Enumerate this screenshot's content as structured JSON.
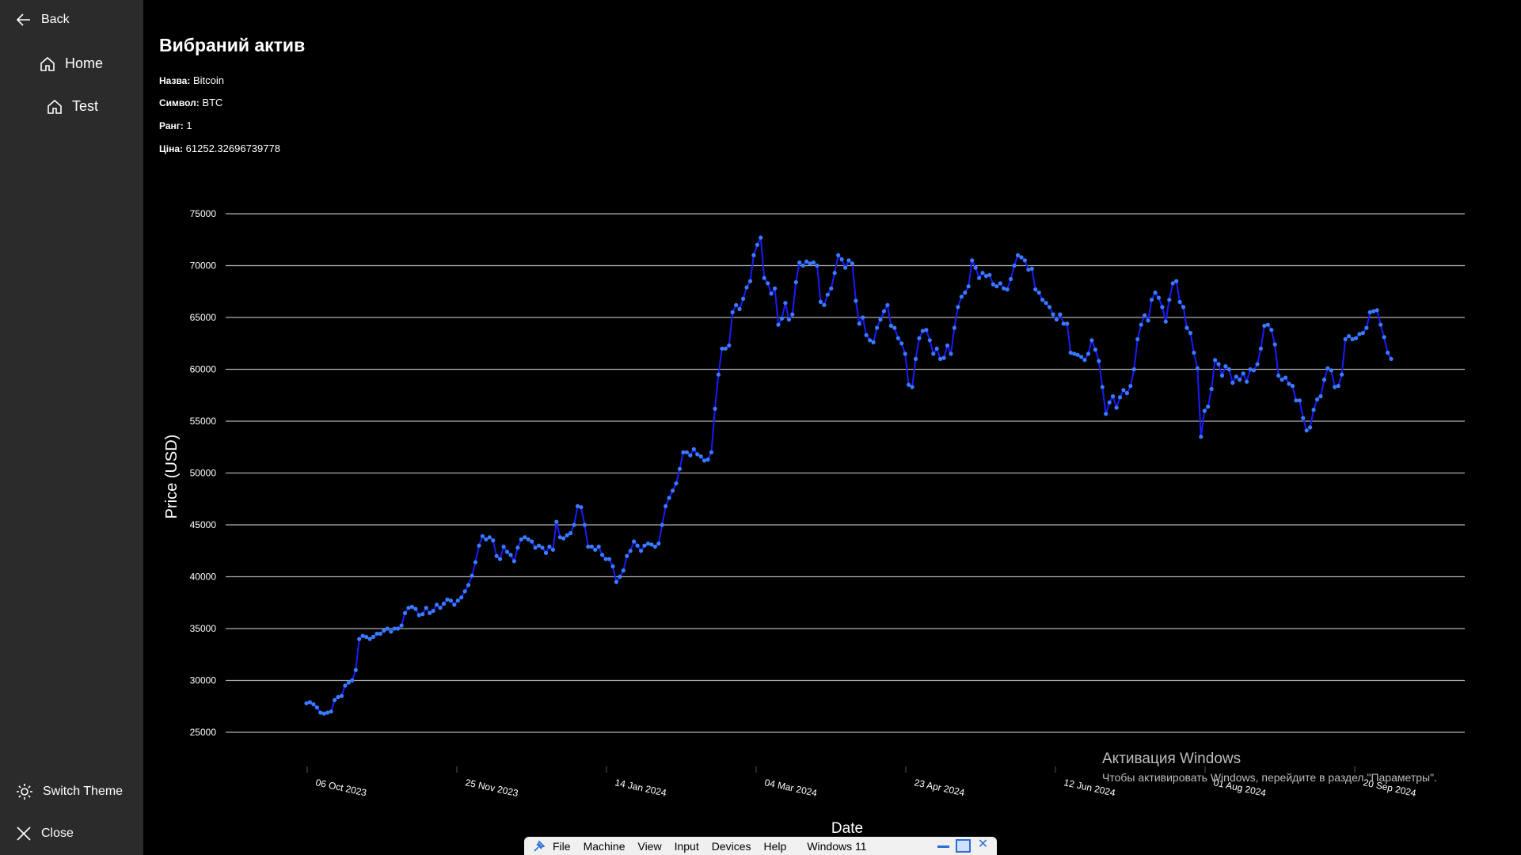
{
  "sidebar": {
    "back_label": "Back",
    "items": [
      {
        "label": "Home",
        "icon": "home-icon"
      },
      {
        "label": "Test",
        "icon": "home-icon"
      }
    ],
    "switch_theme_label": "Switch Theme",
    "close_label": "Close"
  },
  "asset": {
    "title": "Вибраний актив",
    "name_label": "Назва:",
    "name": "Bitcoin",
    "symbol_label": "Символ:",
    "symbol": "BTC",
    "rank_label": "Ранг:",
    "rank": "1",
    "price_label": "Ціна:",
    "price": "61252.32696739778"
  },
  "chart_data": {
    "type": "line",
    "xlabel": "Date",
    "ylabel": "Price (USD)",
    "ylim": [
      25000,
      75000
    ],
    "y_ticks": [
      "25000",
      "30000",
      "35000",
      "40000",
      "45000",
      "50000",
      "55000",
      "60000",
      "65000",
      "70000",
      "75000"
    ],
    "x_ticks": [
      "06 Oct 2023",
      "25 Nov 2023",
      "14 Jan 2024",
      "04 Mar 2024",
      "23 Apr 2024",
      "12 Jun 2024",
      "01 Aug 2024",
      "20 Sep 2024"
    ],
    "x_start": "2023-09-27",
    "x_end": "2024-09-26",
    "grid": true,
    "line_color": "#1a1aff",
    "marker_color": "#3a7bff",
    "values": [
      27800,
      27900,
      27700,
      27400,
      26900,
      26800,
      26900,
      27000,
      28100,
      28400,
      28500,
      29500,
      29800,
      30000,
      31000,
      34000,
      34300,
      34200,
      34000,
      34200,
      34500,
      34500,
      34800,
      35000,
      34700,
      35000,
      35000,
      35300,
      36500,
      37000,
      37100,
      36900,
      36300,
      36400,
      37000,
      36500,
      36700,
      37300,
      37000,
      37400,
      37800,
      37700,
      37300,
      37700,
      38000,
      38600,
      39200,
      40100,
      41400,
      43000,
      43900,
      43600,
      43800,
      43500,
      42000,
      41700,
      42900,
      42400,
      42100,
      41500,
      42800,
      43600,
      43800,
      43600,
      43400,
      42800,
      43000,
      42800,
      42300,
      42900,
      42600,
      45300,
      43800,
      43700,
      44000,
      44200,
      45000,
      46800,
      46700,
      45000,
      42900,
      42900,
      42600,
      42900,
      42100,
      41700,
      41700,
      41000,
      39500,
      40000,
      40600,
      42000,
      42500,
      43400,
      43000,
      42500,
      43000,
      43200,
      43100,
      42900,
      43200,
      45000,
      46800,
      47600,
      48300,
      49000,
      50400,
      52000,
      52000,
      51700,
      52300,
      51800,
      51600,
      51200,
      51300,
      52000,
      56200,
      59500,
      62000,
      62000,
      62300,
      65500,
      66200,
      65800,
      66800,
      67900,
      68500,
      71000,
      72000,
      72700,
      68800,
      68300,
      67300,
      67800,
      64300,
      64900,
      66400,
      64800,
      65300,
      68400,
      70300,
      70000,
      70400,
      70200,
      70300,
      70000,
      66500,
      66200,
      67200,
      67800,
      69300,
      71000,
      70600,
      69800,
      70500,
      70200,
      66600,
      64400,
      65000,
      63300,
      62800,
      62600,
      64000,
      64800,
      65600,
      66200,
      64200,
      64000,
      63000,
      62500,
      61500,
      58500,
      58300,
      61000,
      63000,
      63700,
      63800,
      62800,
      61500,
      62000,
      61000,
      61100,
      62300,
      61500,
      64000,
      66000,
      67000,
      67400,
      68000,
      70500,
      69800,
      68800,
      69300,
      69000,
      69100,
      68200,
      68000,
      68300,
      67800,
      67700,
      68700,
      70000,
      71000,
      70800,
      70500,
      69600,
      69700,
      67700,
      67400,
      66700,
      66400,
      66000,
      65300,
      64800,
      65300,
      64400,
      64400,
      61600,
      61500,
      61400,
      61200,
      60900,
      61500,
      62800,
      61900,
      60800,
      58300,
      55700,
      56800,
      57400,
      56300,
      57300,
      58000,
      57700,
      58400,
      60000,
      62900,
      64300,
      65200,
      64700,
      66700,
      67400,
      66900,
      66000,
      64600,
      66700,
      68300,
      68500,
      66500,
      66000,
      64000,
      63500,
      61600,
      60100,
      53500,
      56000,
      56400,
      58100,
      60900,
      60500,
      59400,
      60300,
      60000,
      58700,
      59300,
      59000,
      59600,
      58800,
      60000,
      59900,
      60500,
      62000,
      64200,
      64300,
      63800,
      62400,
      59400,
      59000,
      59200,
      58600,
      58400,
      57000,
      57000,
      55300,
      54100,
      54400,
      56100,
      57100,
      57400,
      59000,
      60100,
      59900,
      58300,
      58400,
      59500,
      62900,
      63200,
      62900,
      63000,
      63400,
      63500,
      64000,
      65500,
      65600,
      65700,
      64300,
      63100,
      61600,
      61000
    ]
  },
  "watermark": {
    "title": "Активация Windows",
    "subtitle": "Чтобы активировать Windows, перейдите в раздел \"Параметры\"."
  },
  "vbox": {
    "menus": [
      "File",
      "Machine",
      "View",
      "Input",
      "Devices",
      "Help"
    ],
    "vm_name": "Windows 11"
  }
}
